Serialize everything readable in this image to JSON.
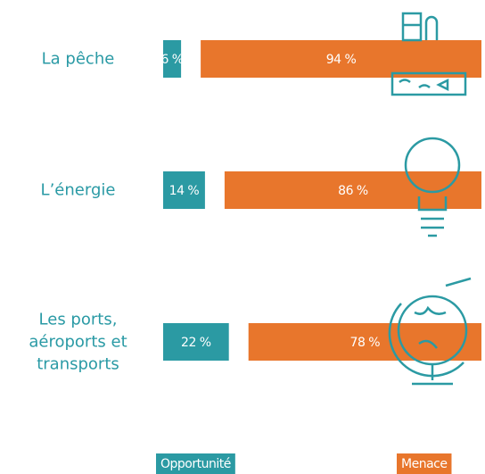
{
  "chart_data": {
    "type": "bar",
    "orientation": "horizontal",
    "stacked": true,
    "categories": [
      "La pêche",
      "L’énergie",
      "Les ports, aéroports et transports"
    ],
    "series": [
      {
        "name": "Opportunité",
        "color": "#2b9aa3",
        "values": [
          6,
          14,
          22
        ],
        "value_labels": [
          "6 %",
          "14 %",
          "22 %"
        ]
      },
      {
        "name": "Menace",
        "color": "#e8762c",
        "values": [
          94,
          86,
          78
        ],
        "value_labels": [
          "94 %",
          "86 %",
          "78 %"
        ]
      }
    ]
  }
}
